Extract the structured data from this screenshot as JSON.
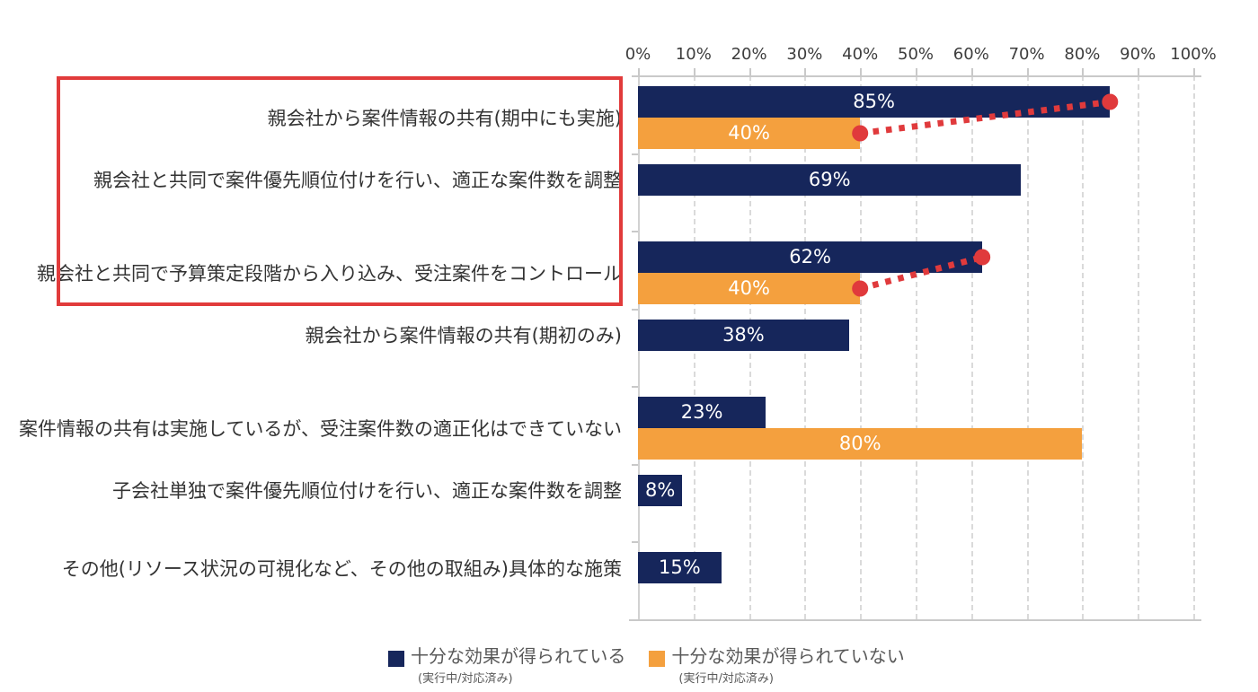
{
  "chart_data": {
    "type": "bar",
    "orientation": "horizontal",
    "title": "",
    "value_suffix": "%",
    "xlim": [
      0,
      100
    ],
    "x_ticks": [
      "0%",
      "10%",
      "20%",
      "30%",
      "40%",
      "50%",
      "60%",
      "70%",
      "80%",
      "90%",
      "100%"
    ],
    "grid": "dashed-vertical",
    "legend_position": "bottom",
    "categories": [
      "親会社から案件情報の共有(期中にも実施)",
      "親会社と共同で案件優先順位付けを行い、適正な案件数を調整",
      "親会社と共同で予算策定段階から入り込み、受注案件をコントロール",
      "親会社から案件情報の共有(期初のみ)",
      "案件情報の共有は実施しているが、受注案件数の適正化はできていない",
      "子会社単独で案件優先順位付けを行い、適正な案件数を調整",
      "その他(リソース状況の可視化など、その他の取組み)具体的な施策"
    ],
    "series": [
      {
        "name": "十分な効果が得られている",
        "subtitle": "(実行中/対応済み)",
        "color": "#16265b",
        "values": [
          85,
          69,
          62,
          38,
          23,
          8,
          15
        ]
      },
      {
        "name": "十分な効果が得られていない",
        "subtitle": "(実行中/対応済み)",
        "color": "#f4a03e",
        "values": [
          40,
          null,
          40,
          null,
          80,
          null,
          null
        ]
      }
    ],
    "connectors": [
      {
        "category_index": 0,
        "from_value": 40,
        "to_value": 85
      },
      {
        "category_index": 2,
        "from_value": 40,
        "to_value": 62
      }
    ],
    "connector_color": "#e03a3c",
    "highlight_box_rows": [
      0,
      1,
      2
    ],
    "highlight_box_color": "#e13b3b"
  }
}
